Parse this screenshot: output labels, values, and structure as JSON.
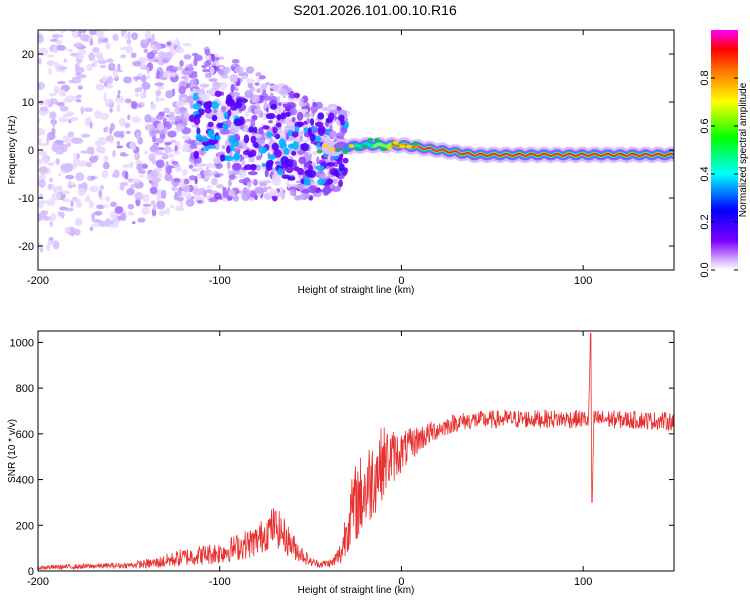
{
  "title": "S201.2026.101.00.10.R16",
  "chart_data": [
    {
      "type": "heatmap",
      "title": "S201.2026.101.00.10.R16",
      "xlabel": "Height of straight line (km)",
      "ylabel": "Frequency (Hz)",
      "xlim": [
        -200,
        150
      ],
      "ylim": [
        -25,
        25
      ],
      "xticks": [
        -200,
        -100,
        0,
        100
      ],
      "yticks": [
        -20,
        -10,
        0,
        10,
        20
      ],
      "colorbar": {
        "label": "Normalized spectral amplitude",
        "range": [
          0.0,
          1.0
        ],
        "ticks": [
          "0.0",
          "0.2",
          "0.4",
          "0.6",
          "0.8"
        ],
        "colors": [
          "#ffffff",
          "#7f00ff",
          "#0000ff",
          "#00ffff",
          "#00ff00",
          "#ffff00",
          "#ff7f00",
          "#ff0000",
          "#ff00ff"
        ]
      },
      "line_center_hz": [
        {
          "x": -100,
          "y": 5
        },
        {
          "x": -50,
          "y": 0
        },
        {
          "x": -20,
          "y": 1
        },
        {
          "x": 0,
          "y": 1
        },
        {
          "x": 20,
          "y": 0
        },
        {
          "x": 40,
          "y": -1
        },
        {
          "x": 150,
          "y": -1
        }
      ]
    },
    {
      "type": "line",
      "xlabel": "Height of straight line (km)",
      "ylabel": "SNR (10 * v/v)",
      "xlim": [
        -200,
        150
      ],
      "ylim": [
        0,
        1050
      ],
      "xticks": [
        -200,
        -100,
        0,
        100
      ],
      "yticks": [
        0,
        200,
        400,
        600,
        800,
        1000
      ],
      "color": "#e83030",
      "envelope": {
        "x": [
          -200,
          -150,
          -135,
          -120,
          -100,
          -80,
          -70,
          -65,
          -60,
          -50,
          -45,
          -38,
          -33,
          -30,
          -25,
          -20,
          -15,
          -10,
          -5,
          0,
          10,
          20,
          30,
          40,
          60,
          80,
          100,
          103,
          104,
          105,
          106,
          110,
          130,
          150
        ],
        "y": [
          15,
          25,
          35,
          60,
          80,
          130,
          200,
          160,
          110,
          40,
          30,
          35,
          80,
          200,
          300,
          350,
          420,
          480,
          500,
          520,
          580,
          620,
          650,
          660,
          665,
          665,
          665,
          660,
          1020,
          320,
          665,
          665,
          660,
          655
        ],
        "amplitude": [
          10,
          12,
          25,
          40,
          50,
          70,
          90,
          80,
          60,
          20,
          15,
          20,
          60,
          120,
          180,
          190,
          180,
          160,
          120,
          90,
          60,
          45,
          40,
          40,
          40,
          40,
          40,
          40,
          0,
          0,
          40,
          40,
          40,
          40
        ]
      }
    }
  ]
}
